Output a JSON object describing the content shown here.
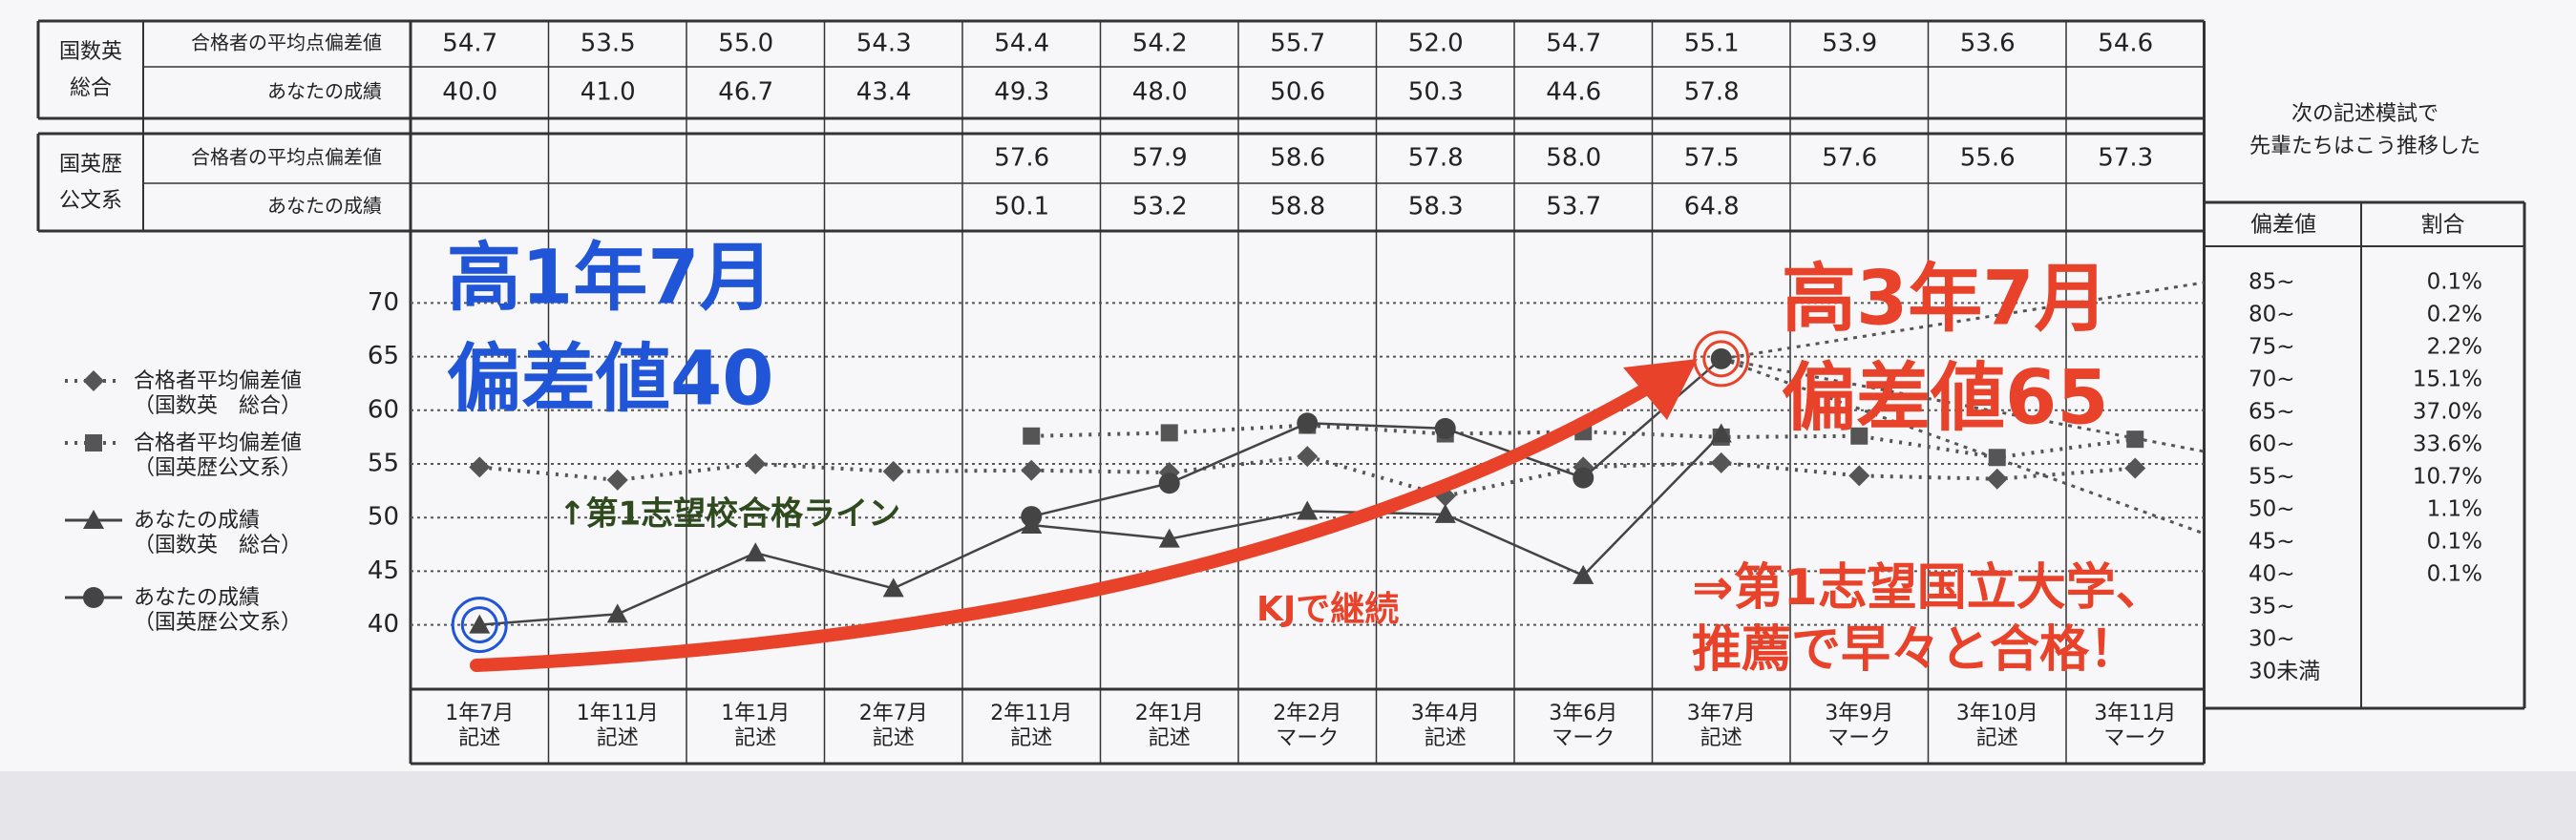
{
  "table": {
    "groups": [
      {
        "label": [
          "国数英",
          "総合"
        ],
        "rows": [
          {
            "label": "合格者の平均点偏差値",
            "cells": [
              "54.7",
              "53.5",
              "55.0",
              "54.3",
              "54.4",
              "54.2",
              "55.7",
              "52.0",
              "54.7",
              "55.1",
              "53.9",
              "53.6",
              "54.6"
            ]
          },
          {
            "label": "あなたの成績",
            "cells": [
              "40.0",
              "41.0",
              "46.7",
              "43.4",
              "49.3",
              "48.0",
              "50.6",
              "50.3",
              "44.6",
              "57.8",
              null,
              null,
              null
            ]
          }
        ]
      },
      {
        "label": [
          "国英歴",
          "公文系"
        ],
        "rows": [
          {
            "label": "合格者の平均点偏差値",
            "cells": [
              null,
              null,
              null,
              null,
              "57.6",
              "57.9",
              "58.6",
              "57.8",
              "58.0",
              "57.5",
              "57.6",
              "55.6",
              "57.3"
            ]
          },
          {
            "label": "あなたの成績",
            "cells": [
              null,
              null,
              null,
              null,
              "50.1",
              "53.2",
              "58.8",
              "58.3",
              "53.7",
              "64.8",
              null,
              null,
              null
            ]
          }
        ]
      }
    ]
  },
  "chart_data": {
    "type": "line",
    "categories": [
      "1年7月\n記述",
      "1年11月\n記述",
      "1年1月\n記述",
      "2年7月\n記述",
      "2年11月\n記述",
      "2年1月\n記述",
      "2年2月\nマーク",
      "3年4月\n記述",
      "3年6月\nマーク",
      "3年7月\n記述",
      "3年9月\nマーク",
      "3年10月\n記述",
      "3年11月\nマーク"
    ],
    "series": [
      {
        "name": "合格者平均偏差値\n（国数英　総合）",
        "color": "#555555",
        "marker": "diamond",
        "line": "dotted",
        "values": [
          54.7,
          53.5,
          55.0,
          54.3,
          54.4,
          54.2,
          55.7,
          52.0,
          54.7,
          55.1,
          53.9,
          53.6,
          54.6
        ]
      },
      {
        "name": "合格者平均偏差値\n（国英歴公文系）",
        "color": "#555555",
        "marker": "square",
        "line": "dotted",
        "values": [
          null,
          null,
          null,
          null,
          57.6,
          57.9,
          58.6,
          57.8,
          58.0,
          57.5,
          57.6,
          55.6,
          57.3
        ]
      },
      {
        "name": "あなたの成績\n（国数英　総合）",
        "color": "#444444",
        "marker": "triangle",
        "line": "solid",
        "values": [
          40.0,
          41.0,
          46.7,
          43.4,
          49.3,
          48.0,
          50.6,
          50.3,
          44.6,
          57.8,
          null,
          null,
          null
        ]
      },
      {
        "name": "あなたの成績\n（国英歴公文系）",
        "color": "#444444",
        "marker": "circle",
        "line": "solid",
        "values": [
          null,
          null,
          null,
          null,
          50.1,
          53.2,
          58.8,
          58.3,
          53.7,
          64.8,
          null,
          null,
          null
        ]
      }
    ],
    "ylim": [
      34,
      76
    ],
    "yticks": [
      40,
      45,
      50,
      55,
      60,
      65,
      70
    ],
    "grid": true,
    "legend": "left",
    "annotations": {
      "start": [
        "高1年7月",
        "偏差値40"
      ],
      "end": [
        "高3年7月",
        "偏差値65"
      ],
      "line": "↑第1志望校合格ライン",
      "continue": "KJで継続",
      "result": [
        "⇒第1志望国立大学、",
        "推薦で早々と合格！"
      ]
    }
  },
  "side": {
    "title": [
      "次の記述模試で",
      "先輩たちはこう推移した"
    ],
    "header": [
      "偏差値",
      "割合"
    ],
    "rows": [
      [
        "85~",
        "0.1%"
      ],
      [
        "80~",
        "0.2%"
      ],
      [
        "75~",
        "2.2%"
      ],
      [
        "70~",
        "15.1%"
      ],
      [
        "65~",
        "37.0%"
      ],
      [
        "60~",
        "33.6%"
      ],
      [
        "55~",
        "10.7%"
      ],
      [
        "50~",
        "1.1%"
      ],
      [
        "45~",
        "0.1%"
      ],
      [
        "40~",
        "0.1%"
      ],
      [
        "35~"
      ],
      [
        "30~"
      ],
      [
        "30未満"
      ]
    ]
  }
}
